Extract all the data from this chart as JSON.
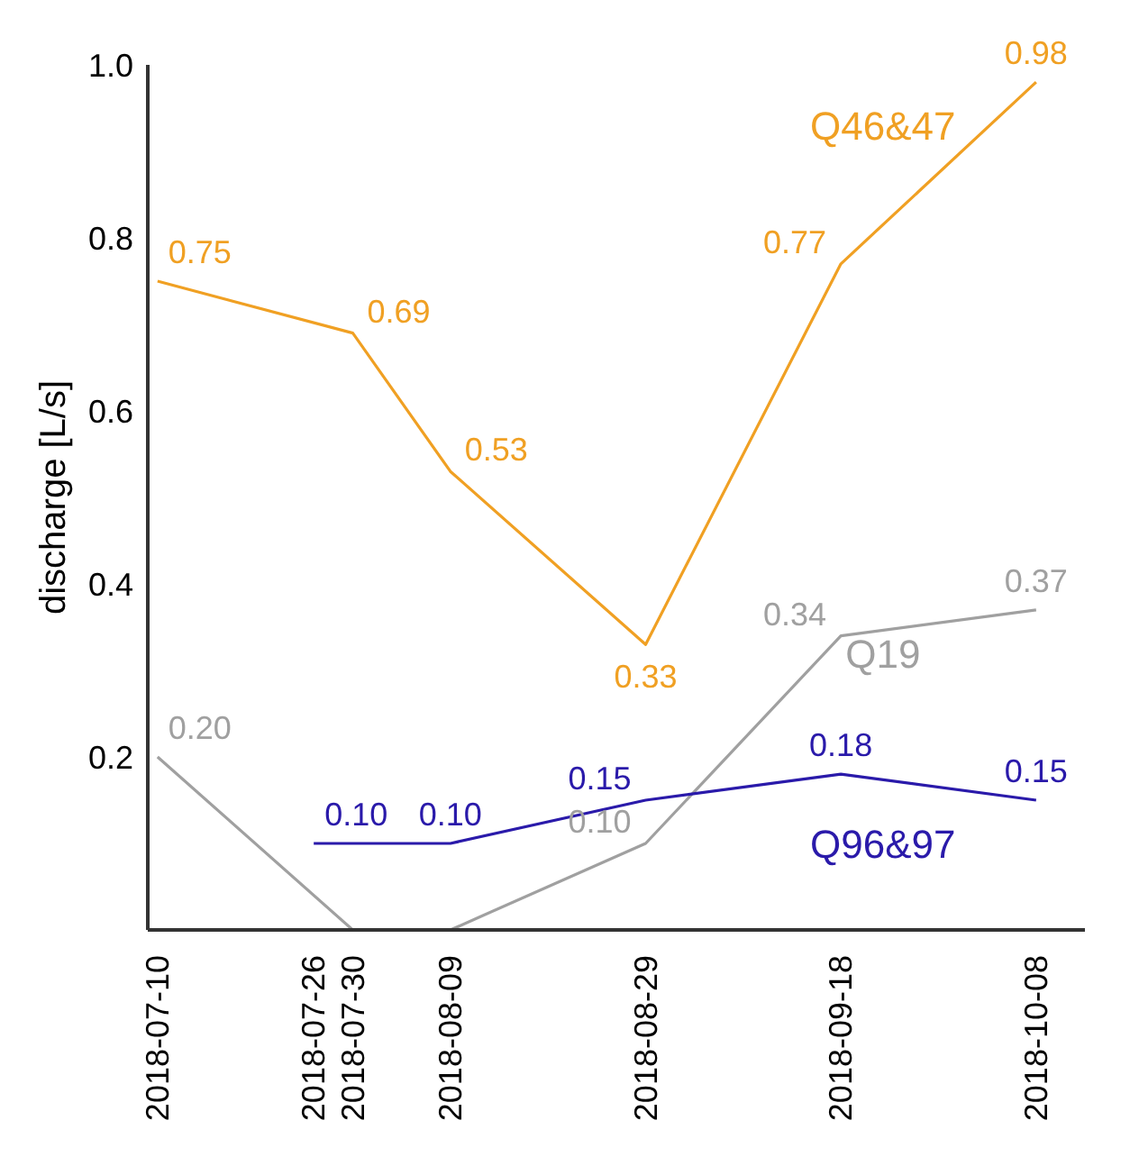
{
  "chart_data": {
    "type": "line",
    "ylabel": "discharge [L/s]",
    "xlim": [
      "2018-07-09",
      "2018-10-13"
    ],
    "xticks": [
      "2018-07-10",
      "2018-07-26",
      "2018-07-30",
      "2018-08-09",
      "2018-08-29",
      "2018-09-18",
      "2018-10-08"
    ],
    "ylim": [
      0,
      1
    ],
    "yticks": [
      0.2,
      0.4,
      0.6,
      0.8,
      {
        "value": 1,
        "label": "1.0"
      }
    ],
    "marker": "none",
    "line_style": "solid",
    "series": [
      {
        "name": "Q46&47",
        "color": "#f0a023",
        "x": [
          "2018-07-10",
          "2018-07-30",
          "2018-08-09",
          "2018-08-29",
          "2018-09-18",
          "2018-10-08"
        ],
        "values": [
          0.75,
          0.69,
          0.53,
          0.33,
          0.77,
          0.98
        ],
        "value_labels": [
          "0.75",
          "0.69",
          "0.53",
          "0.33",
          "0.77",
          "0.98"
        ]
      },
      {
        "name": "Q19",
        "color": "#a0a0a0",
        "x": [
          "2018-07-10",
          "2018-07-30",
          "2018-08-09",
          "2018-08-29",
          "2018-09-18",
          "2018-10-08"
        ],
        "values": [
          0.2,
          0,
          0,
          0.1,
          0.34,
          0.37
        ],
        "value_labels": [
          "0.20",
          null,
          null,
          "0.10",
          "0.34",
          "0.37"
        ]
      },
      {
        "name": "Q96&97",
        "color": "#2a1aaa",
        "x": [
          "2018-07-26",
          "2018-08-09",
          "2018-08-29",
          "2018-09-18",
          "2018-10-08"
        ],
        "values": [
          0.1,
          0.1,
          0.15,
          0.18,
          0.15
        ],
        "value_labels": [
          "0.10",
          "0.10",
          "0.15",
          "0.18",
          "0.15"
        ]
      }
    ]
  }
}
